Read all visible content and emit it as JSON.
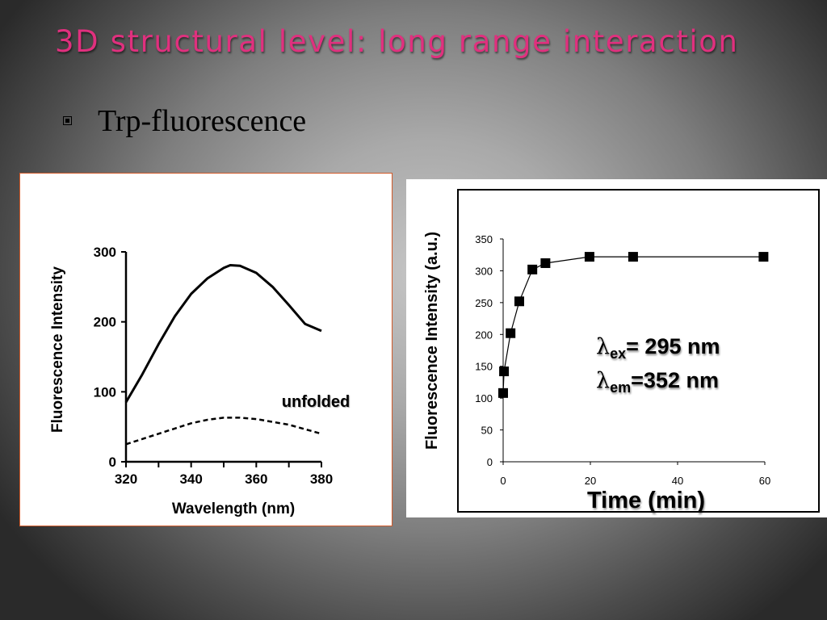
{
  "slide": {
    "title": "3D structural level: long range interaction",
    "bullet": "Trp-fluorescence"
  },
  "colors": {
    "title": "#e0307e",
    "background_center": "#c6c6c6",
    "background_edge": "#2a2a2a",
    "left_panel_border": "#d05a2a"
  },
  "chart_data": [
    {
      "type": "line",
      "xlabel": "Wavelength (nm)",
      "ylabel": "Fluorescence Intensity",
      "xlim": [
        320,
        380
      ],
      "ylim": [
        0,
        300
      ],
      "x_ticks": [
        320,
        340,
        360,
        380
      ],
      "y_ticks": [
        0,
        100,
        200,
        300
      ],
      "grid": false,
      "annotation": "unfolded",
      "series": [
        {
          "style": "solid",
          "x": [
            320,
            325,
            330,
            335,
            340,
            345,
            350,
            352,
            355,
            360,
            365,
            370,
            375,
            380
          ],
          "y": [
            85,
            125,
            168,
            208,
            240,
            262,
            277,
            281,
            280,
            270,
            250,
            224,
            197,
            187
          ]
        },
        {
          "style": "dashed",
          "x": [
            320,
            330,
            340,
            345,
            350,
            355,
            360,
            370,
            380
          ],
          "y": [
            25,
            40,
            55,
            60,
            63,
            63,
            61,
            53,
            40
          ]
        }
      ]
    },
    {
      "type": "scatter",
      "xlabel": "Time (min)",
      "ylabel": "Fluorescence Intensity (a.u.)",
      "xlim": [
        0,
        60
      ],
      "ylim": [
        0,
        350
      ],
      "x_ticks": [
        0,
        20,
        40,
        60
      ],
      "y_ticks": [
        0,
        50,
        100,
        150,
        200,
        250,
        300,
        350
      ],
      "grid": false,
      "series": [
        {
          "marker": "square",
          "x": [
            0,
            0.2,
            1.7,
            3.7,
            6.7,
            9.7,
            19.8,
            29.8,
            59.7
          ],
          "y": [
            108,
            142,
            202,
            252,
            302,
            312,
            322,
            322,
            322
          ]
        }
      ],
      "annotations": [
        {
          "symbol": "λ",
          "subscript": "ex",
          "text": "= 295 nm"
        },
        {
          "symbol": "λ",
          "subscript": "em",
          "text": "=352 nm"
        }
      ]
    }
  ]
}
